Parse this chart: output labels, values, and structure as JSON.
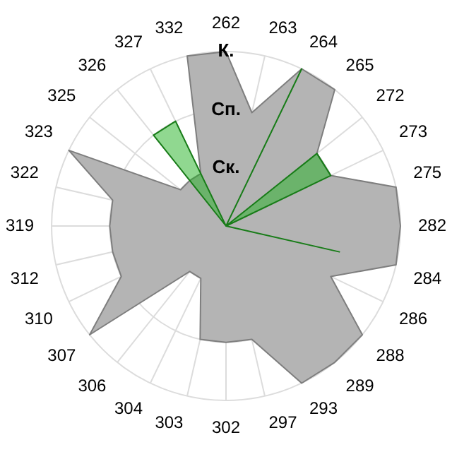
{
  "chart_data": {
    "type": "radar",
    "categories": [
      "262",
      "263",
      "264",
      "265",
      "272",
      "273",
      "275",
      "282",
      "284",
      "286",
      "288",
      "289",
      "293",
      "297",
      "302",
      "303",
      "304",
      "306",
      "307",
      "310",
      "312",
      "319",
      "322",
      "323",
      "325",
      "326",
      "327",
      "332"
    ],
    "series": [
      {
        "color": "#b4b4b4",
        "values": [
          3,
          2,
          3,
          3,
          2,
          2,
          3,
          3,
          3,
          2,
          3,
          3,
          3,
          2,
          2,
          2,
          1,
          1,
          3,
          2,
          2,
          2,
          2,
          3,
          1,
          1,
          1,
          3
        ]
      },
      {
        "color": "#22b122",
        "values": [
          0,
          0,
          3,
          0,
          2,
          2,
          0,
          0,
          2,
          0,
          0,
          0,
          0,
          0,
          0,
          0,
          0,
          0,
          0,
          0,
          0,
          0,
          0,
          0,
          0,
          2,
          2,
          0
        ]
      }
    ],
    "ylim": [
      0,
      3
    ],
    "yticks": [
      {
        "value": 1,
        "label": "Ск."
      },
      {
        "value": 2,
        "label": "Сп."
      },
      {
        "value": 3,
        "label": "К."
      }
    ],
    "grid": true,
    "legend": false,
    "marker": "none"
  }
}
